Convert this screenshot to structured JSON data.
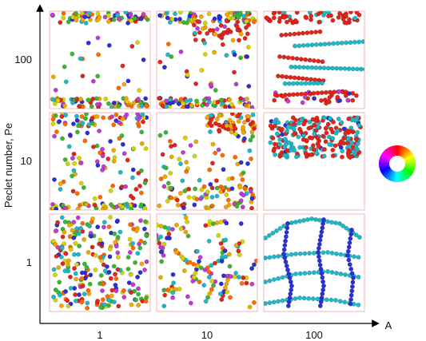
{
  "chart_data": {
    "type": "scatter",
    "title": "",
    "xlabel": "A",
    "ylabel": "Peclet number, Pe",
    "x_ticks": [
      "1",
      "10",
      "100"
    ],
    "y_ticks": [
      "1",
      "10",
      "100"
    ],
    "x_scale": "log",
    "y_scale": "log",
    "grid": "3x3 panels, one per (A, Pe) pair",
    "legend": "orientation color wheel at right",
    "panel_border_color": "#f2b8b8",
    "axis_color": "#000000",
    "palette": [
      "#e3241b",
      "#1fb8c9",
      "#f0a800",
      "#2a2fd6",
      "#c03ad6",
      "#37b832",
      "#ff6a00",
      "#d4d400"
    ],
    "panels": [
      {
        "A": 1,
        "Pe": 100,
        "pattern": "wall-accumulation"
      },
      {
        "A": 10,
        "Pe": 100,
        "pattern": "wall-accumulation"
      },
      {
        "A": 100,
        "Pe": 100,
        "pattern": "wall-chains"
      },
      {
        "A": 1,
        "Pe": 10,
        "pattern": "wall-accumulation-dilute"
      },
      {
        "A": 10,
        "Pe": 10,
        "pattern": "wall-clusters"
      },
      {
        "A": 100,
        "Pe": 10,
        "pattern": "dense-band"
      },
      {
        "A": 1,
        "Pe": 1,
        "pattern": "disordered"
      },
      {
        "A": 10,
        "Pe": 1,
        "pattern": "short-chains"
      },
      {
        "A": 100,
        "Pe": 1,
        "pattern": "chain-network"
      }
    ]
  }
}
